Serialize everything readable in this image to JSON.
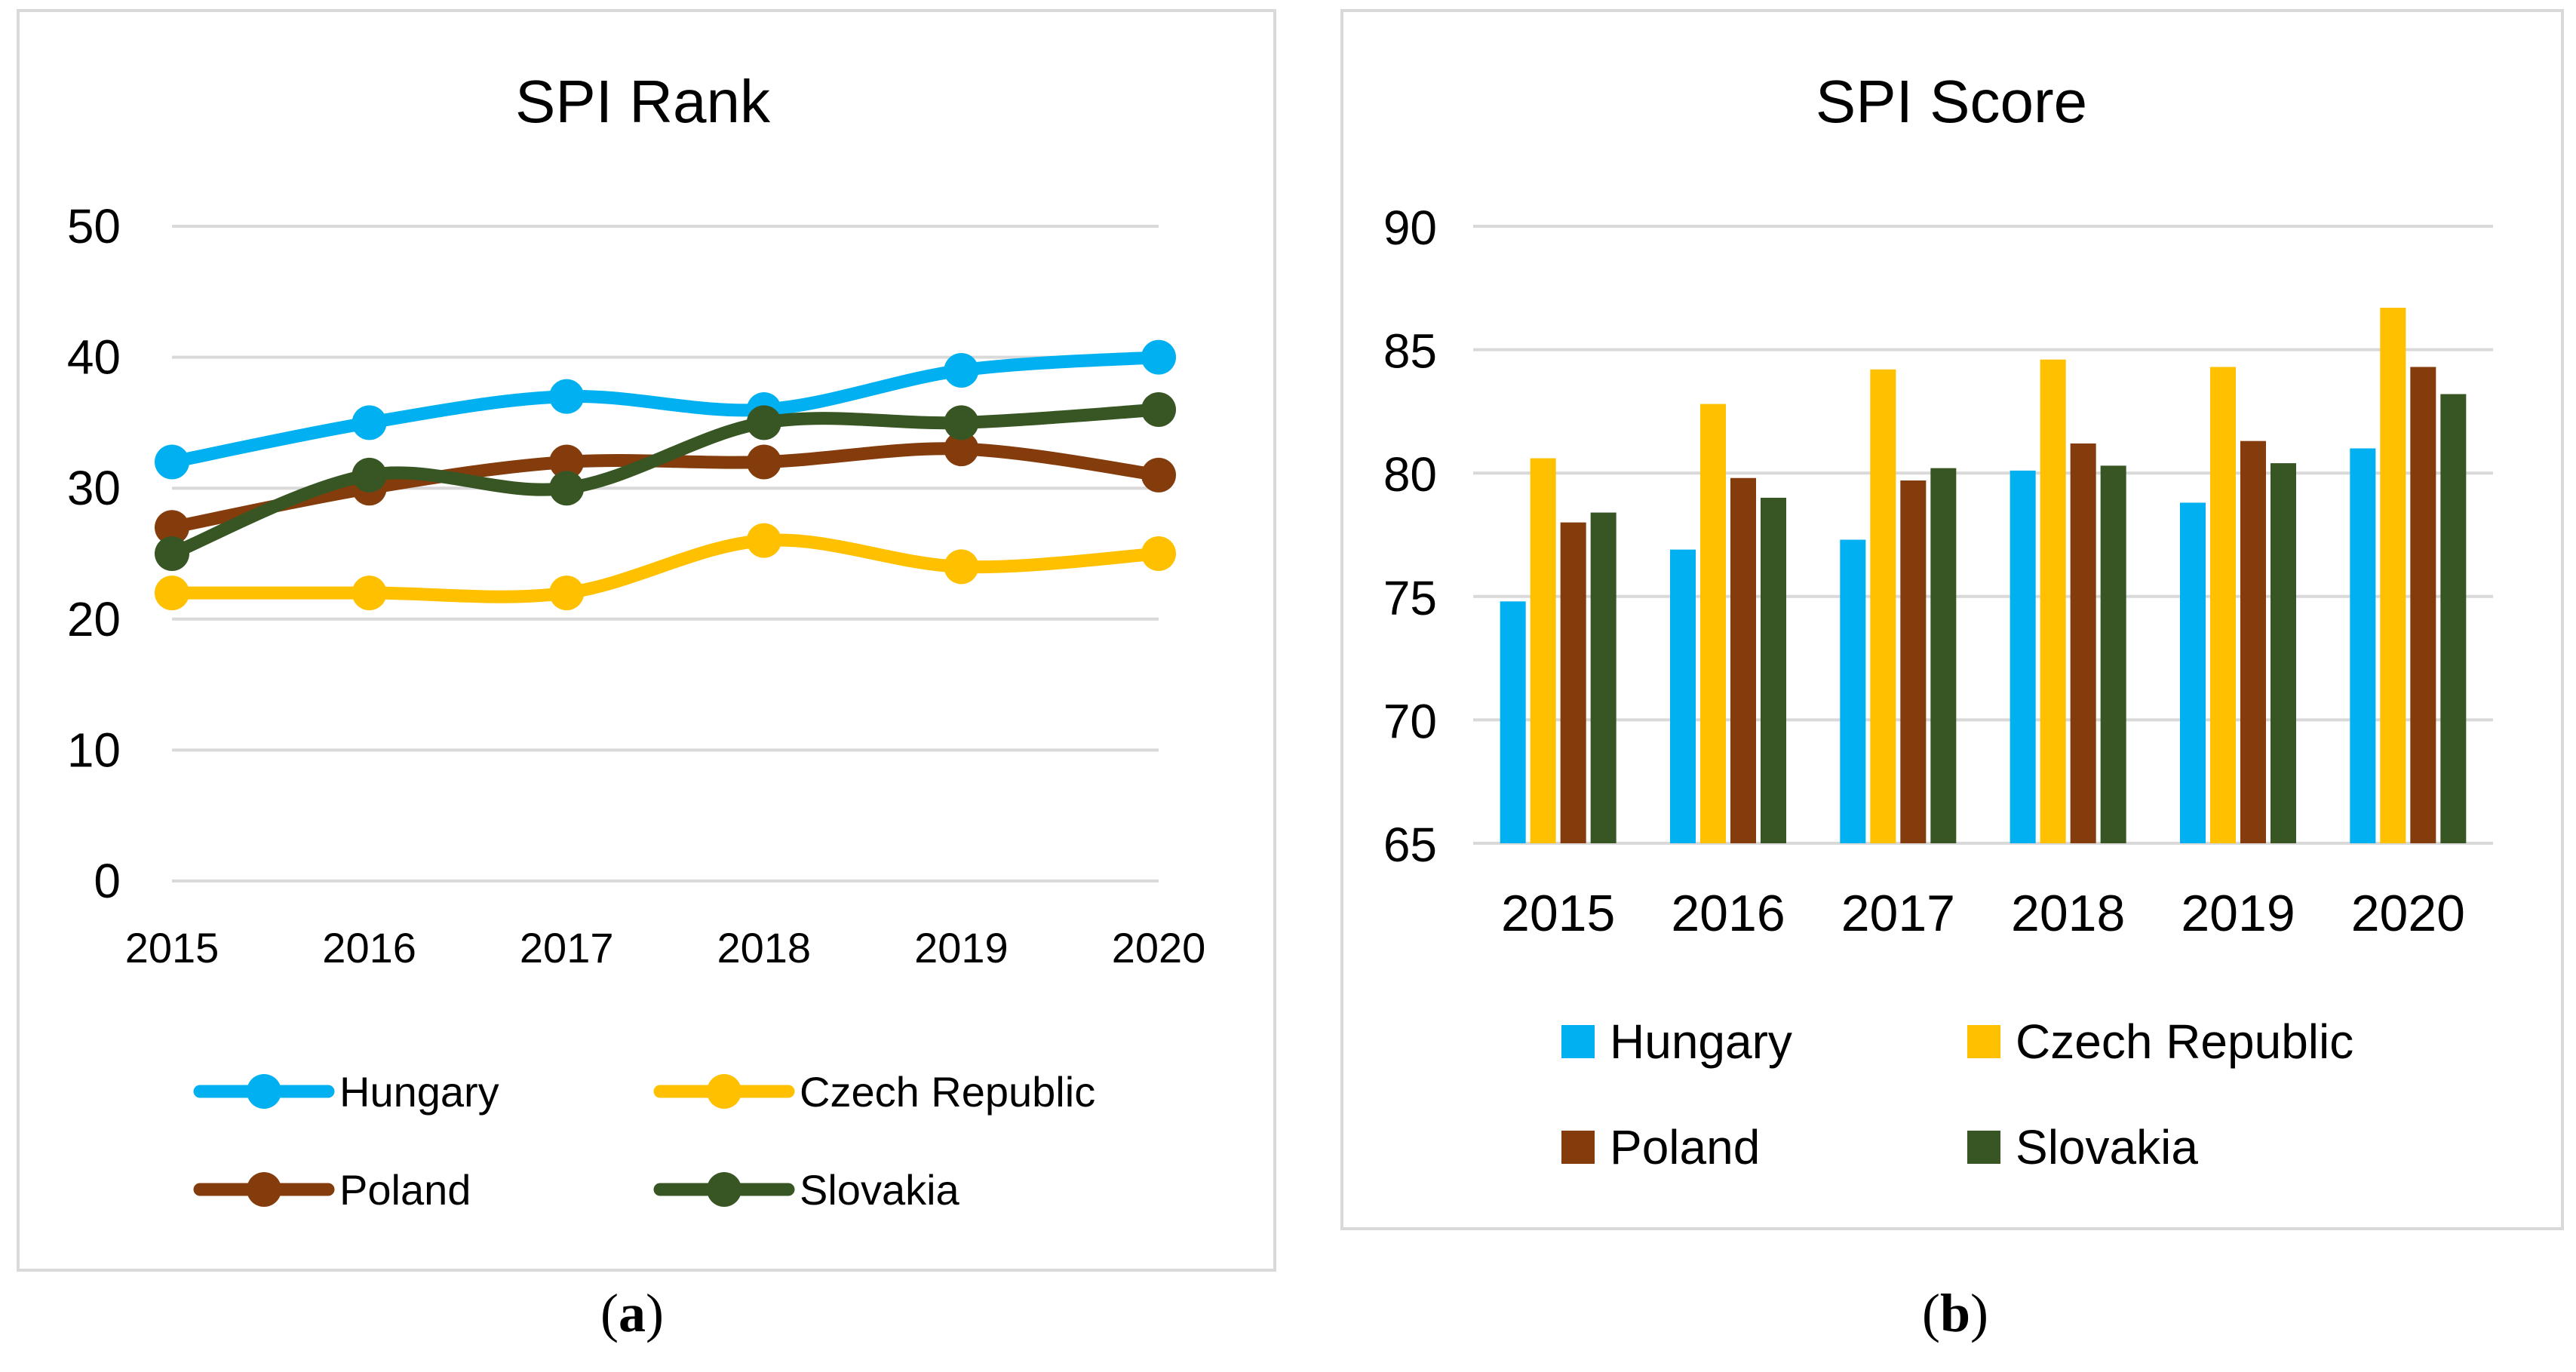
{
  "colors": {
    "Hungary": "#00b0f0",
    "Czech Republic": "#ffc000",
    "Poland": "#843c0c",
    "Slovakia": "#375623",
    "grid": "#d9d9d9",
    "border": "#d9d9d9"
  },
  "captions": {
    "a_open": "(",
    "a_letter": "a",
    "a_close": ")",
    "b_open": "(",
    "b_letter": "b",
    "b_close": ")"
  },
  "chart_data": [
    {
      "type": "line",
      "title": "SPI Rank",
      "categories": [
        "2015",
        "2016",
        "2017",
        "2018",
        "2019",
        "2020"
      ],
      "ylim": [
        0,
        50
      ],
      "yticks": [
        0,
        10,
        20,
        30,
        40,
        50
      ],
      "grid": true,
      "legend_position": "bottom",
      "series": [
        {
          "name": "Hungary",
          "values": [
            32,
            35,
            37,
            36,
            39,
            40
          ]
        },
        {
          "name": "Czech Republic",
          "values": [
            22,
            22,
            22,
            26,
            24,
            25
          ]
        },
        {
          "name": "Poland",
          "values": [
            27,
            30,
            32,
            32,
            33,
            31
          ]
        },
        {
          "name": "Slovakia",
          "values": [
            25,
            31,
            30,
            35,
            35,
            36
          ]
        }
      ]
    },
    {
      "type": "bar",
      "title": "SPI Score",
      "categories": [
        "2015",
        "2016",
        "2017",
        "2018",
        "2019",
        "2020"
      ],
      "ylim": [
        65,
        90
      ],
      "yticks": [
        65,
        70,
        75,
        80,
        85,
        90
      ],
      "grid": true,
      "legend_position": "bottom",
      "series": [
        {
          "name": "Hungary",
          "values": [
            74.8,
            76.9,
            77.3,
            80.1,
            78.8,
            81.0
          ]
        },
        {
          "name": "Czech Republic",
          "values": [
            80.6,
            82.8,
            84.2,
            84.6,
            84.3,
            86.7
          ]
        },
        {
          "name": "Poland",
          "values": [
            78.0,
            79.8,
            79.7,
            81.2,
            81.3,
            84.3
          ]
        },
        {
          "name": "Slovakia",
          "values": [
            78.4,
            79.0,
            80.2,
            80.3,
            80.4,
            83.2
          ]
        }
      ]
    }
  ]
}
